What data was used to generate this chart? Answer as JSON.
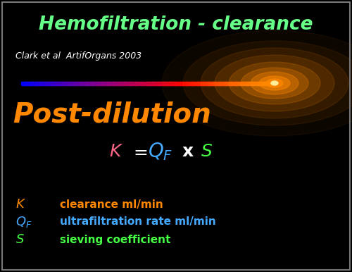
{
  "title": "Hemofiltration - clearance",
  "title_color": "#66ff88",
  "subtitle": "Clark et al  ArtifOrgans 2003",
  "subtitle_color": "#ffffff",
  "post_dilution_text": "Post-dilution",
  "post_dilution_color": "#ff8800",
  "formula_K_color": "#ff6688",
  "formula_eq_color": "#ffffff",
  "formula_QF_color": "#44aaff",
  "formula_S_color": "#44ff44",
  "legend_K_sym_color": "#ff8800",
  "legend_K_desc_color": "#ff8800",
  "legend_Q_sym_color": "#44aaff",
  "legend_Q_desc_color": "#44aaff",
  "legend_S_sym_color": "#44ff44",
  "legend_S_desc_color": "#44ff44",
  "bg_color": "#000000"
}
